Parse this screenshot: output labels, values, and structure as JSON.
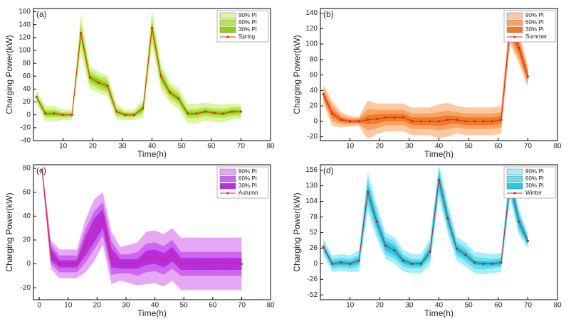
{
  "chart_data": [
    {
      "type": "line",
      "label": "(a)",
      "xlabel": "Time(h)",
      "ylabel": "Charging Power(kW)",
      "x": [
        1,
        4,
        7,
        10,
        13,
        16,
        19,
        22,
        25,
        28,
        31,
        34,
        37,
        40,
        43,
        46,
        49,
        52,
        55,
        58,
        61,
        64,
        67,
        70
      ],
      "xlim": [
        0,
        80
      ],
      "xticks": [
        10,
        20,
        30,
        40,
        50,
        60,
        70,
        80
      ],
      "ylim": [
        -40,
        165
      ],
      "yticks": [
        -40,
        -20,
        0,
        20,
        40,
        60,
        80,
        100,
        120,
        140,
        160
      ],
      "legend": "upper right",
      "bands": [
        {
          "name": "90% PI",
          "color": "#dcf5a0",
          "lower": [
            18,
            -10,
            -10,
            -8,
            -8,
            97,
            40,
            34,
            29,
            -7,
            -8,
            -8,
            -4,
            107,
            40,
            19,
            9,
            -13,
            -13,
            -9,
            -11,
            -12,
            -7,
            -7
          ],
          "upper": [
            38,
            14,
            14,
            8,
            8,
            157,
            76,
            66,
            61,
            17,
            8,
            8,
            24,
            163,
            80,
            51,
            41,
            17,
            17,
            19,
            17,
            16,
            17,
            17
          ]
        },
        {
          "name": "60% PI",
          "color": "#b8e84e",
          "lower": [
            22,
            -4,
            -4,
            -4,
            -4,
            111,
            48,
            40,
            35,
            -2,
            -4,
            -4,
            2,
            119,
            48,
            26,
            16,
            -5,
            -5,
            -2,
            -4,
            -5,
            -2,
            -2
          ],
          "upper": [
            34,
            8,
            8,
            4,
            4,
            143,
            68,
            60,
            55,
            12,
            4,
            4,
            18,
            151,
            72,
            44,
            34,
            9,
            9,
            12,
            10,
            9,
            12,
            12
          ]
        },
        {
          "name": "30% PI",
          "color": "#8fd11b",
          "lower": [
            25,
            -1,
            -1,
            -2,
            -2,
            119,
            53,
            45,
            40,
            2,
            -2,
            -2,
            6,
            127,
            54,
            31,
            21,
            -1,
            -1,
            2,
            0,
            -1,
            2,
            2
          ],
          "upper": [
            31,
            5,
            5,
            2,
            2,
            135,
            63,
            55,
            50,
            8,
            2,
            2,
            14,
            143,
            66,
            39,
            29,
            5,
            5,
            8,
            6,
            5,
            8,
            8
          ]
        }
      ],
      "series": [
        {
          "name": "Spring",
          "color": "#e52a2a",
          "values": [
            28,
            2,
            2,
            0,
            0,
            127,
            58,
            50,
            45,
            5,
            0,
            0,
            10,
            135,
            60,
            35,
            25,
            2,
            2,
            5,
            3,
            2,
            5,
            5
          ]
        }
      ]
    },
    {
      "type": "line",
      "label": "(b)",
      "xlabel": "Time(h)",
      "ylabel": "Charging Power(kW)",
      "x": [
        1,
        4,
        7,
        10,
        13,
        16,
        19,
        22,
        25,
        28,
        31,
        34,
        37,
        40,
        43,
        46,
        49,
        52,
        55,
        58,
        61,
        64,
        67,
        70
      ],
      "xlim": [
        0,
        80
      ],
      "xticks": [
        10,
        20,
        30,
        40,
        50,
        60,
        70,
        80
      ],
      "ylim": [
        -25,
        146
      ],
      "yticks": [
        -20,
        0,
        20,
        40,
        60,
        80,
        100,
        120,
        140
      ],
      "legend": "upper right",
      "bands": [
        {
          "name": "90% PI",
          "color": "#fbcaa2",
          "lower": [
            23,
            -6,
            -8,
            -7,
            -6,
            -23,
            -17,
            -13,
            -13,
            -13,
            -18,
            -18,
            -18,
            -22,
            -20,
            -16,
            -18,
            -18,
            -18,
            -18,
            -16,
            100,
            75,
            44
          ],
          "upper": [
            47,
            26,
            12,
            7,
            6,
            27,
            23,
            23,
            23,
            23,
            18,
            18,
            18,
            22,
            24,
            20,
            18,
            18,
            18,
            18,
            20,
            140,
            115,
            72
          ]
        },
        {
          "name": "60% PI",
          "color": "#f7a463",
          "lower": [
            27,
            0,
            -4,
            -4,
            -4,
            -12,
            -9,
            -5,
            -5,
            -5,
            -10,
            -10,
            -10,
            -12,
            -10,
            -8,
            -10,
            -10,
            -10,
            -10,
            -8,
            106,
            81,
            48
          ],
          "upper": [
            43,
            20,
            8,
            4,
            4,
            16,
            15,
            15,
            15,
            15,
            10,
            10,
            10,
            12,
            14,
            12,
            10,
            10,
            10,
            10,
            12,
            134,
            109,
            68
          ]
        },
        {
          "name": "30% PI",
          "color": "#f07a2a",
          "lower": [
            31,
            5,
            -1,
            -2,
            -2,
            -4,
            -3,
            0,
            0,
            0,
            -5,
            -5,
            -5,
            -6,
            -4,
            -3,
            -5,
            -5,
            -5,
            -5,
            -3,
            112,
            87,
            52
          ],
          "upper": [
            39,
            15,
            5,
            2,
            2,
            8,
            9,
            10,
            10,
            10,
            5,
            5,
            5,
            6,
            8,
            7,
            5,
            5,
            5,
            5,
            7,
            128,
            103,
            64
          ]
        }
      ],
      "series": [
        {
          "name": "Summer",
          "color": "#d42a1e",
          "values": [
            35,
            10,
            2,
            0,
            0,
            2,
            3,
            5,
            5,
            5,
            0,
            0,
            0,
            0,
            2,
            2,
            0,
            0,
            0,
            0,
            2,
            120,
            95,
            58
          ]
        }
      ]
    },
    {
      "type": "line",
      "label": "(c)",
      "xlabel": "Time(h)",
      "ylabel": "Charging Power(kW)",
      "x": [
        1,
        4,
        7,
        10,
        13,
        16,
        19,
        22,
        25,
        28,
        31,
        34,
        37,
        40,
        43,
        46,
        49,
        52,
        55,
        58,
        61,
        64,
        67,
        70
      ],
      "xlim": [
        -2,
        80
      ],
      "xticks": [
        0,
        10,
        20,
        30,
        40,
        50,
        60,
        70,
        80
      ],
      "ylim": [
        -30,
        83
      ],
      "yticks": [
        -20,
        0,
        20,
        40,
        60,
        80
      ],
      "legend": "upper right",
      "bands": [
        {
          "name": "90% PI",
          "color": "#e6a8f4",
          "lower": [
            74,
            -4,
            -12,
            -12,
            -12,
            -7,
            2,
            16,
            -17,
            -14,
            -16,
            -18,
            -17,
            -16,
            -19,
            -14,
            -22,
            -22,
            -22,
            -22,
            -22,
            -22,
            -22,
            -22
          ],
          "upper": [
            82,
            20,
            12,
            12,
            12,
            37,
            54,
            60,
            27,
            14,
            16,
            18,
            27,
            28,
            25,
            30,
            22,
            22,
            22,
            22,
            22,
            22,
            22,
            22
          ]
        },
        {
          "name": "60% PI",
          "color": "#cd68ee",
          "lower": [
            75,
            0,
            -7,
            -7,
            -7,
            1,
            12,
            24,
            -9,
            -8,
            -8,
            -10,
            -7,
            -6,
            -9,
            -4,
            -10,
            -10,
            -10,
            -10,
            -10,
            -10,
            -10,
            -10
          ],
          "upper": [
            81,
            16,
            7,
            7,
            7,
            29,
            44,
            52,
            19,
            8,
            8,
            10,
            17,
            18,
            15,
            20,
            10,
            10,
            10,
            10,
            10,
            10,
            10,
            10
          ]
        },
        {
          "name": "30% PI",
          "color": "#b52ee6",
          "lower": [
            76,
            3,
            -3,
            -3,
            -3,
            7,
            18,
            30,
            -3,
            -4,
            -4,
            -4,
            -1,
            0,
            -3,
            2,
            -5,
            -5,
            -5,
            -5,
            -5,
            -5,
            -5,
            -5
          ],
          "upper": [
            80,
            13,
            3,
            3,
            3,
            23,
            38,
            46,
            13,
            4,
            4,
            4,
            11,
            12,
            9,
            14,
            5,
            5,
            5,
            5,
            5,
            5,
            5,
            5
          ]
        }
      ],
      "series": [
        {
          "name": "Autumn",
          "color": "#e52a2a",
          "values": [
            78,
            8,
            0,
            0,
            0,
            15,
            28,
            38,
            5,
            0,
            0,
            0,
            5,
            6,
            3,
            8,
            0,
            0,
            0,
            0,
            0,
            0,
            0,
            0
          ]
        }
      ]
    },
    {
      "type": "line",
      "label": "(d)",
      "xlabel": "Time(h)",
      "ylabel": "Charging Power(kW)",
      "x": [
        1,
        4,
        7,
        10,
        13,
        16,
        19,
        22,
        25,
        28,
        31,
        34,
        37,
        40,
        43,
        46,
        49,
        52,
        55,
        58,
        61,
        64,
        67,
        70
      ],
      "xlim": [
        0,
        80
      ],
      "xticks": [
        10,
        20,
        30,
        40,
        50,
        60,
        70,
        80
      ],
      "ylim": [
        -60,
        165
      ],
      "yticks": [
        -52,
        -26,
        0,
        26,
        52,
        78,
        104,
        130,
        156
      ],
      "legend": "upper right",
      "bands": [
        {
          "name": "90% PI",
          "color": "#a8eef8",
          "lower": [
            14,
            -14,
            -12,
            -14,
            -13,
            86,
            42,
            8,
            0,
            -13,
            -16,
            -16,
            -2,
            110,
            49,
            5,
            -5,
            -16,
            -18,
            -16,
            -14,
            107,
            48,
            26
          ],
          "upper": [
            42,
            14,
            16,
            14,
            23,
            154,
            98,
            52,
            44,
            23,
            16,
            16,
            42,
            165,
            101,
            45,
            35,
            20,
            18,
            16,
            18,
            163,
            92,
            50
          ]
        },
        {
          "name": "60% PI",
          "color": "#66dff2",
          "lower": [
            20,
            -8,
            -6,
            -8,
            -5,
            98,
            52,
            16,
            8,
            -5,
            -8,
            -8,
            6,
            120,
            57,
            13,
            3,
            -8,
            -10,
            -8,
            -6,
            115,
            54,
            30
          ],
          "upper": [
            36,
            8,
            10,
            8,
            15,
            142,
            88,
            44,
            36,
            15,
            8,
            8,
            34,
            160,
            93,
            37,
            27,
            12,
            10,
            8,
            10,
            155,
            86,
            46
          ]
        },
        {
          "name": "30% PI",
          "color": "#1fcbe6",
          "lower": [
            24,
            -4,
            -2,
            -4,
            0,
            108,
            60,
            22,
            14,
            0,
            -4,
            -4,
            12,
            128,
            65,
            19,
            9,
            -2,
            -4,
            -4,
            -2,
            123,
            60,
            33
          ],
          "upper": [
            32,
            4,
            6,
            4,
            10,
            132,
            80,
            38,
            30,
            10,
            4,
            4,
            28,
            152,
            85,
            31,
            21,
            6,
            4,
            4,
            6,
            147,
            80,
            43
          ]
        }
      ],
      "series": [
        {
          "name": "Winter",
          "color": "#c8201e",
          "values": [
            28,
            0,
            2,
            0,
            5,
            120,
            70,
            30,
            22,
            5,
            0,
            0,
            20,
            140,
            75,
            25,
            15,
            2,
            0,
            0,
            2,
            135,
            70,
            38
          ]
        }
      ]
    }
  ]
}
